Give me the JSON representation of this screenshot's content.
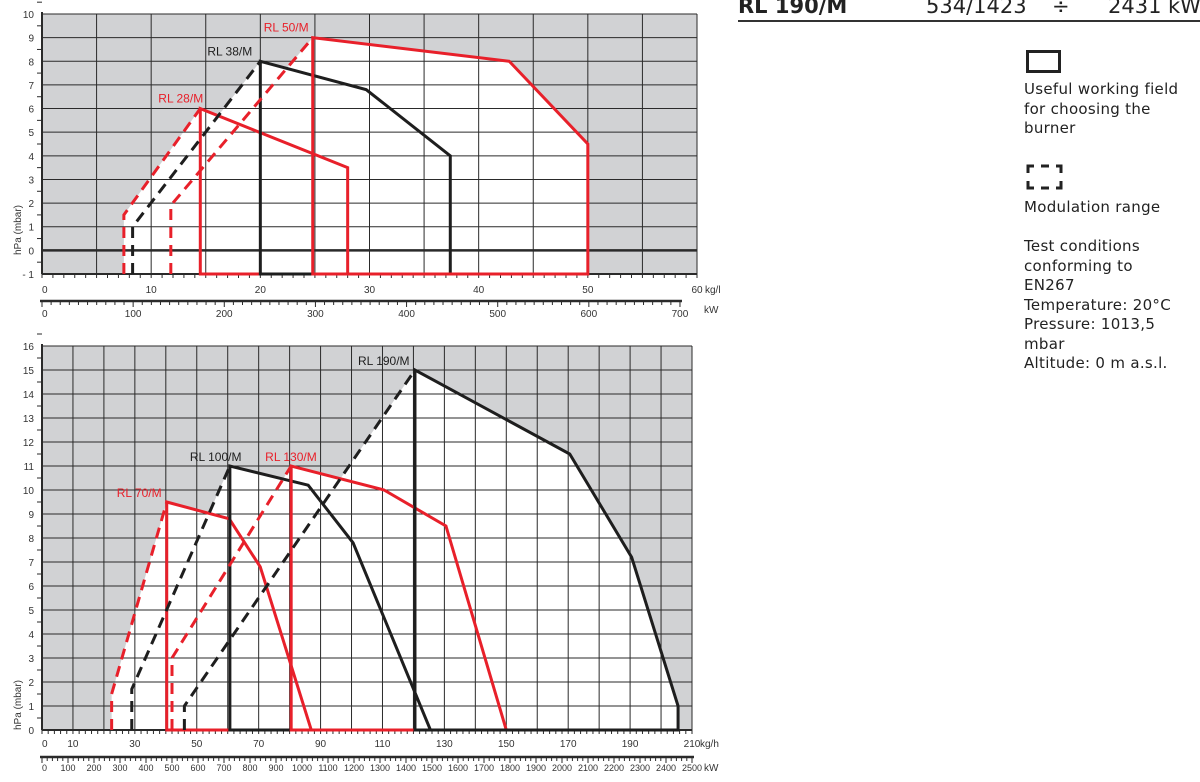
{
  "header": {
    "model": "RL 190/M",
    "range_min": "534/1423",
    "divider": "÷",
    "range_max": "2431",
    "unit": "kW"
  },
  "legend": {
    "working_field": [
      "Useful working field",
      "for choosing the",
      "burner"
    ],
    "modulation": "Modulation range",
    "conditions": [
      "Test conditions",
      "conforming to",
      "EN267",
      "Temperature: 20°C",
      "Pressure: 1013,5",
      "mbar",
      "Altitude: 0 m a.s.l."
    ]
  },
  "colors": {
    "red": "#e8202a",
    "black": "#1e1e1e",
    "background": "#d1d2d4"
  },
  "chart_data": [
    {
      "type": "line",
      "ylabel": "hPa (mbar)",
      "xlabel": "kg/h",
      "x2label": "kW",
      "xlim": [
        0,
        60
      ],
      "ylim": [
        -1,
        10
      ],
      "yticks": [
        "10",
        "9",
        "8",
        "7",
        "6",
        "5",
        "4",
        "3",
        "2",
        "1",
        "0",
        "- 1"
      ],
      "ytick_values": [
        10,
        9,
        8,
        7,
        6,
        5,
        4,
        3,
        2,
        1,
        0,
        -1
      ],
      "xticks": [
        0,
        10,
        20,
        30,
        40,
        50,
        60
      ],
      "xtick_labels": [
        "0",
        "10",
        "20",
        "30",
        "40",
        "50",
        "60"
      ],
      "x2ticks": [
        0,
        100,
        200,
        300,
        400,
        500,
        600,
        700
      ],
      "x2tick_labels": [
        "0",
        "100",
        "200",
        "300",
        "400",
        "500",
        "600",
        "700"
      ],
      "grid": true,
      "series": [
        {
          "name": "RL 28/M",
          "color": "red",
          "modulation": [
            [
              7.5,
              -1
            ],
            [
              7.5,
              1.5
            ],
            [
              14.5,
              6
            ]
          ],
          "working_field": [
            [
              14.5,
              -1
            ],
            [
              14.5,
              6
            ],
            [
              28,
              3.5
            ],
            [
              28,
              -1
            ]
          ]
        },
        {
          "name": "RL 38/M",
          "color": "black",
          "modulation": [
            [
              8.3,
              -1
            ],
            [
              8.3,
              1
            ],
            [
              20,
              8
            ]
          ],
          "working_field": [
            [
              20,
              -1
            ],
            [
              20,
              8
            ],
            [
              29.7,
              6.8
            ],
            [
              37.4,
              4
            ],
            [
              37.4,
              -1
            ]
          ]
        },
        {
          "name": "RL 50/M",
          "color": "red",
          "modulation": [
            [
              11.8,
              -1
            ],
            [
              11.8,
              1.9
            ],
            [
              24.8,
              9
            ]
          ],
          "working_field": [
            [
              24.8,
              -1
            ],
            [
              24.8,
              9
            ],
            [
              42.8,
              8
            ],
            [
              50,
              4.5
            ],
            [
              50,
              -1
            ]
          ]
        }
      ]
    },
    {
      "type": "line",
      "ylabel": "hPa (mbar)",
      "xlabel": "kg/h",
      "x2label": "kW",
      "xlim": [
        0,
        210
      ],
      "ylim": [
        0,
        16
      ],
      "yticks": [
        "16",
        "15",
        "14",
        "13",
        "12",
        "11",
        "10",
        "9",
        "8",
        "7",
        "6",
        "5",
        "4",
        "3",
        "2",
        "1",
        "0"
      ],
      "ytick_values": [
        16,
        15,
        14,
        13,
        12,
        11,
        10,
        9,
        8,
        7,
        6,
        5,
        4,
        3,
        2,
        1,
        0
      ],
      "xticks": [
        0,
        10,
        30,
        50,
        70,
        90,
        110,
        130,
        150,
        170,
        190,
        210
      ],
      "xtick_labels": [
        "0",
        "10",
        "30",
        "50",
        "70",
        "90",
        "110",
        "130",
        "150",
        "170",
        "190",
        "210"
      ],
      "x2ticks": [
        0,
        100,
        200,
        300,
        400,
        500,
        600,
        700,
        800,
        900,
        1000,
        1100,
        1200,
        1300,
        1400,
        1500,
        1600,
        1700,
        1800,
        1900,
        2000,
        2100,
        2200,
        2300,
        2400,
        2500
      ],
      "x2tick_labels": [
        "0",
        "100",
        "200",
        "300",
        "400",
        "500",
        "600",
        "700",
        "800",
        "900",
        "1000",
        "1100",
        "1200",
        "1300",
        "1400",
        "1500",
        "1600",
        "1700",
        "1800",
        "1900",
        "2000",
        "2100",
        "2200",
        "2300",
        "2400",
        "2500"
      ],
      "grid": true,
      "series": [
        {
          "name": "RL 70/M",
          "color": "red",
          "modulation": [
            [
              22.5,
              0
            ],
            [
              22.5,
              1.5
            ],
            [
              40.3,
              9.5
            ]
          ],
          "working_field": [
            [
              40.3,
              0
            ],
            [
              40.3,
              9.5
            ],
            [
              60.5,
              8.8
            ],
            [
              70.5,
              6.8
            ],
            [
              87,
              0
            ]
          ]
        },
        {
          "name": "RL 100/M",
          "color": "black",
          "modulation": [
            [
              29,
              0
            ],
            [
              29,
              1.7
            ],
            [
              60.7,
              11
            ]
          ],
          "working_field": [
            [
              60.7,
              0
            ],
            [
              60.7,
              11
            ],
            [
              86,
              10.2
            ],
            [
              100.5,
              7.8
            ],
            [
              125.5,
              0
            ]
          ]
        },
        {
          "name": "RL 130/M",
          "color": "red",
          "modulation": [
            [
              42,
              0
            ],
            [
              42,
              3
            ],
            [
              80.5,
              11
            ]
          ],
          "working_field": [
            [
              80.5,
              0
            ],
            [
              80.5,
              11
            ],
            [
              110.5,
              10
            ],
            [
              130.5,
              8.5
            ],
            [
              150,
              0
            ]
          ]
        },
        {
          "name": "RL 190/M",
          "color": "black",
          "modulation": [
            [
              46,
              0
            ],
            [
              46,
              1
            ],
            [
              120.5,
              15
            ]
          ],
          "working_field": [
            [
              120.5,
              0
            ],
            [
              120.5,
              15
            ],
            [
              170.5,
              11.5
            ],
            [
              190.5,
              7.2
            ],
            [
              205.5,
              1
            ],
            [
              205.5,
              0
            ]
          ]
        }
      ]
    }
  ]
}
